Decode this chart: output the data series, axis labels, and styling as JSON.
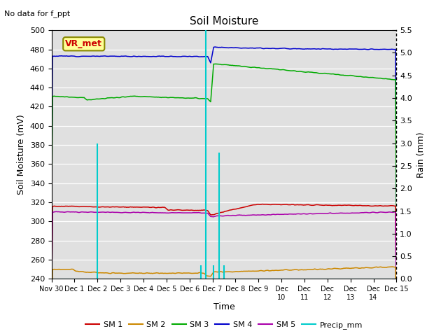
{
  "title": "Soil Moisture",
  "subtitle": "No data for f_ppt",
  "ylabel_left": "Soil Moisture (mV)",
  "ylabel_right": "Rain (mm)",
  "xlabel": "Time",
  "annotation": "VR_met",
  "ylim_left": [
    240,
    500
  ],
  "ylim_right": [
    0.0,
    5.5
  ],
  "yticks_left": [
    240,
    260,
    280,
    300,
    320,
    340,
    360,
    380,
    400,
    420,
    440,
    460,
    480,
    500
  ],
  "yticks_right": [
    0.0,
    0.5,
    1.0,
    1.5,
    2.0,
    2.5,
    3.0,
    3.5,
    4.0,
    4.5,
    5.0,
    5.5
  ],
  "n_points": 350,
  "colors": {
    "SM1": "#cc0000",
    "SM2": "#cc8800",
    "SM3": "#00aa00",
    "SM4": "#0000cc",
    "SM5": "#aa00aa",
    "Precip": "#00cccc",
    "bg": "#e0e0e0"
  },
  "xticklabels": [
    "Nov 30",
    "Dec 1",
    "Dec 2",
    "Dec 3",
    "Dec 4",
    "Dec 5",
    "Dec 6",
    "Dec 7",
    "Dec 8",
    "Dec 9Dec",
    "10Dec",
    "11Dec",
    "12Dec",
    "13Dec",
    "14Dec 15"
  ],
  "rain_events": [
    {
      "x": 2.0,
      "mm": 3.0
    },
    {
      "x": 6.5,
      "mm": 0.3
    },
    {
      "x": 6.7,
      "mm": 5.5
    },
    {
      "x": 7.05,
      "mm": 0.3
    },
    {
      "x": 7.3,
      "mm": 2.8
    },
    {
      "x": 7.5,
      "mm": 0.3
    }
  ]
}
